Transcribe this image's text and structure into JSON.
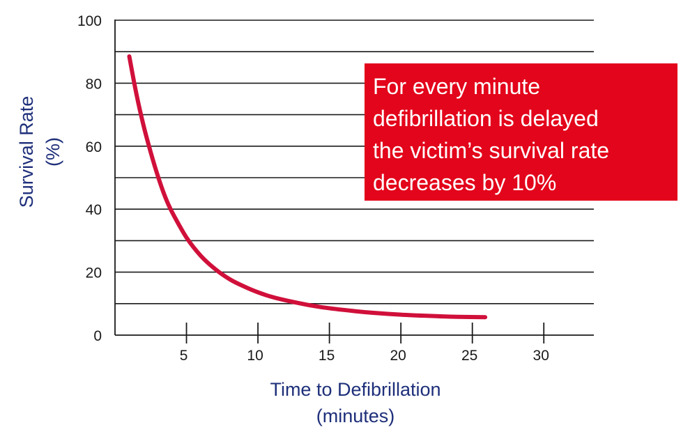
{
  "chart_data": {
    "type": "line",
    "title": "",
    "xlabel_lines": [
      "Time to Defibrillation",
      "(minutes)"
    ],
    "ylabel_lines": [
      "Survival Rate",
      "(%)"
    ],
    "xlim": [
      0,
      33.5
    ],
    "ylim": [
      0,
      100
    ],
    "x_ticks": [
      5,
      10,
      15,
      20,
      25,
      30
    ],
    "y_ticks": [
      0,
      20,
      40,
      60,
      80,
      100
    ],
    "y_gridlines": [
      10,
      20,
      30,
      40,
      50,
      60,
      70,
      80,
      90,
      100
    ],
    "grid": true,
    "series": [
      {
        "color": "#d0103a",
        "x": [
          1,
          1.5,
          2,
          2.5,
          3,
          3.5,
          4,
          5,
          6,
          7,
          8,
          9,
          10,
          11,
          12,
          14,
          16,
          18,
          20,
          22,
          24,
          25.9
        ],
        "y": [
          88.5,
          76.5,
          66.5,
          58,
          50.5,
          44,
          39,
          31,
          25.2,
          21,
          17.8,
          15.5,
          13.6,
          12.1,
          11,
          9.2,
          8,
          7.1,
          6.5,
          6.1,
          5.8,
          5.7
        ]
      }
    ]
  },
  "callout": {
    "lines": [
      "For every minute",
      "defibrillation is delayed",
      "the victim’s survival rate",
      "decreases by 10%"
    ],
    "background": "#e3051b",
    "text_color": "#ffffff"
  },
  "colors": {
    "axis_title": "#1e2f7a",
    "gridline": "#1a1a1a",
    "curve": "#d0103a"
  }
}
